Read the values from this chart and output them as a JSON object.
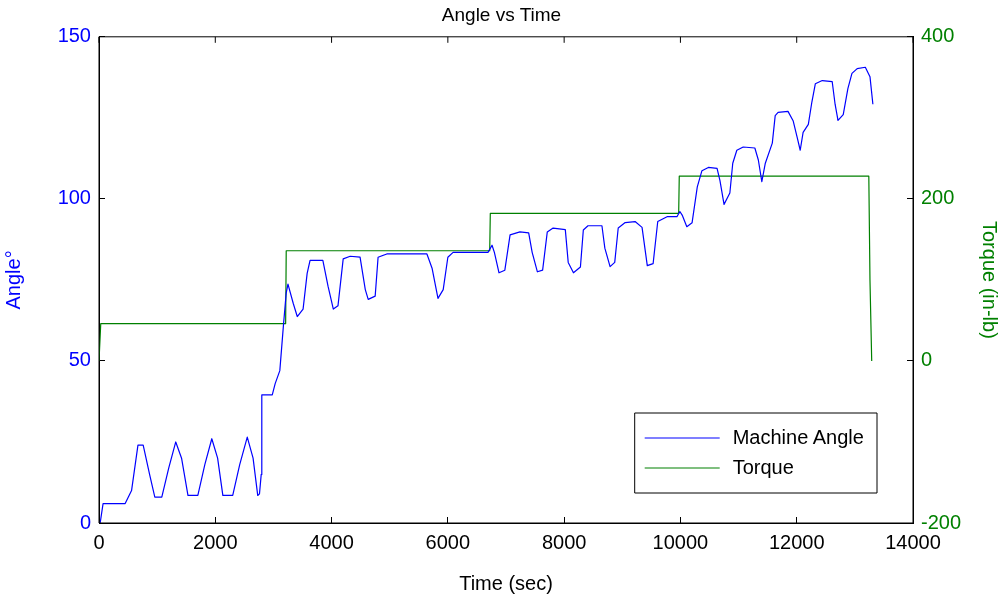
{
  "chart_data": {
    "type": "line",
    "title": "Angle vs Time",
    "xlabel": "Time (sec)",
    "ylabel": "Angle°",
    "y2label": "Torque (in-lb)",
    "xlim": [
      0,
      14000
    ],
    "xticks": [
      0,
      2000,
      4000,
      6000,
      8000,
      10000,
      12000,
      14000
    ],
    "ylim": [
      0,
      150
    ],
    "yticks": [
      0,
      50,
      100,
      150
    ],
    "y2lim": [
      -200,
      400
    ],
    "y2ticks": [
      -200,
      0,
      200,
      400
    ],
    "grid": false,
    "legend": "bottom right",
    "marker": "none",
    "line_style": "solid",
    "series": [
      {
        "name": "Machine Angle",
        "color": "#0000ff",
        "axis": "y",
        "x": [
          20,
          70,
          450,
          560,
          670,
          760,
          870,
          960,
          1080,
          1200,
          1320,
          1420,
          1530,
          1700,
          1820,
          1940,
          2040,
          2130,
          2300,
          2420,
          2550,
          2650,
          2730,
          2760,
          2790,
          2800,
          2980,
          3030,
          3110,
          3170,
          3220,
          3250,
          3340,
          3410,
          3510,
          3580,
          3630,
          3850,
          3940,
          4030,
          4110,
          4200,
          4320,
          4490,
          4580,
          4630,
          4750,
          4800,
          4950,
          5640,
          5730,
          5830,
          5920,
          6000,
          6090,
          6690,
          6760,
          6800,
          6880,
          6980,
          7070,
          7240,
          7390,
          7450,
          7540,
          7630,
          7710,
          7810,
          8020,
          8070,
          8160,
          8280,
          8330,
          8410,
          8650,
          8700,
          8790,
          8870,
          8930,
          9050,
          9220,
          9340,
          9430,
          9530,
          9610,
          9770,
          9940,
          9990,
          10030,
          10110,
          10200,
          10290,
          10370,
          10480,
          10630,
          10680,
          10750,
          10850,
          10900,
          10970,
          11080,
          11280,
          11340,
          11400,
          11460,
          11580,
          11630,
          11680,
          11850,
          11940,
          12010,
          12060,
          12110,
          12200,
          12260,
          12320,
          12440,
          12610,
          12660,
          12710,
          12800,
          12880,
          12950,
          13040,
          13180,
          13260,
          13310
        ],
        "values": [
          0,
          6,
          6,
          10,
          24,
          24,
          15,
          8,
          8,
          17,
          25,
          20,
          8.5,
          8.5,
          18,
          26,
          20,
          8.5,
          8.5,
          18,
          26.5,
          20,
          8.5,
          9,
          15,
          39.5,
          39.5,
          43,
          47,
          60.5,
          71,
          73.7,
          67.8,
          63.7,
          66,
          77,
          81,
          81,
          73,
          66,
          67,
          81.5,
          82.3,
          82,
          72,
          69,
          70,
          82,
          83,
          83,
          78.5,
          69.3,
          72,
          82,
          83.5,
          83.5,
          85.7,
          83.5,
          77.2,
          78,
          88.9,
          89.8,
          89.5,
          83.5,
          77.5,
          78,
          89.8,
          91,
          90.5,
          80.4,
          77.2,
          79,
          90.4,
          91.7,
          91.7,
          84.8,
          79.1,
          80.4,
          91,
          92.7,
          93,
          91.2,
          79.4,
          80,
          93,
          94.5,
          94.5,
          96.1,
          95,
          91.4,
          92.6,
          103.7,
          108.7,
          109.7,
          109.4,
          105.6,
          98.3,
          101.8,
          111,
          115,
          116,
          115.7,
          112,
          105.3,
          111,
          117.2,
          125.7,
          126.7,
          127,
          124,
          118.8,
          115,
          120.5,
          123,
          129.8,
          135.5,
          136.5,
          136.2,
          129.2,
          124.2,
          126,
          134,
          138.7,
          140.2,
          140.6,
          137.7,
          129.2
        ]
      },
      {
        "name": "Torque",
        "color": "#008000",
        "axis": "y2",
        "x": [
          0,
          30,
          3210,
          3220,
          6720,
          6730,
          9970,
          9980,
          13240,
          13260,
          13290
        ],
        "values": [
          0,
          46,
          46,
          136,
          136,
          182,
          182,
          228,
          228,
          100,
          0
        ]
      }
    ]
  }
}
